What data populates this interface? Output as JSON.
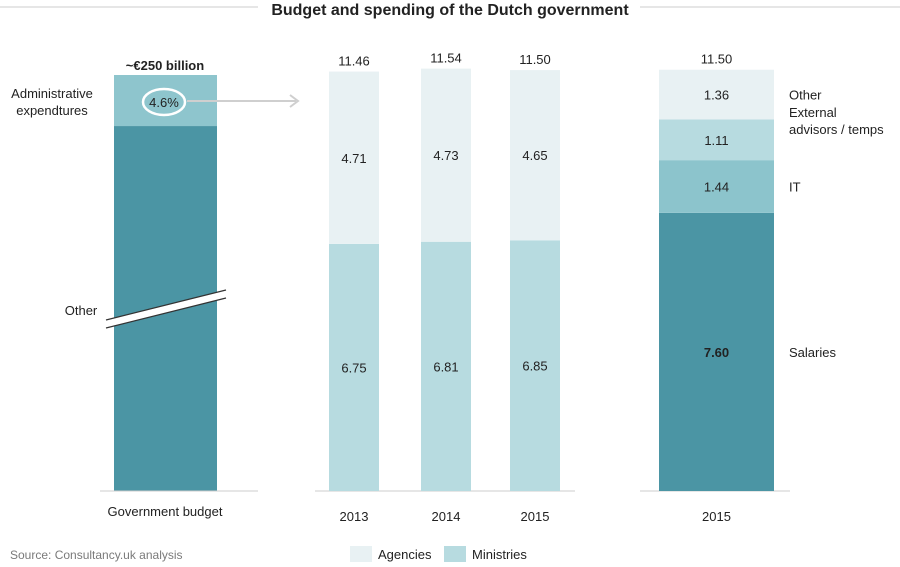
{
  "chart_data": {
    "type": "bar",
    "title": "Budget and spending of the Dutch government",
    "colors": {
      "agencies": "#e8f1f3",
      "ministries": "#b7dbe0",
      "admin": "#8ec5cd",
      "it": "#8cc4cc",
      "teal": "#4b95a4",
      "axis": "#cccccc",
      "arrow": "#cfcfcf"
    },
    "government_budget": {
      "total_label": "~€250 billion",
      "category": "Government budget",
      "segments": [
        {
          "name": "Administrative expendtures",
          "share_percent": 4.6,
          "value_label": "4.6%"
        },
        {
          "name": "Other",
          "share_percent": 95.4
        }
      ]
    },
    "yearly": {
      "categories": [
        "2013",
        "2014",
        "2015"
      ],
      "totals": [
        "11.46",
        "11.54",
        "11.50"
      ],
      "series": [
        {
          "name": "Ministries",
          "values": [
            6.75,
            6.81,
            6.85
          ]
        },
        {
          "name": "Agencies",
          "values": [
            4.71,
            4.73,
            4.65
          ]
        }
      ]
    },
    "breakdown_2015": {
      "category": "2015",
      "total": "11.50",
      "segments": [
        {
          "name": "Salaries",
          "value": 7.6
        },
        {
          "name": "IT",
          "value": 1.44
        },
        {
          "name": "External advisors / temps",
          "value": 1.11
        },
        {
          "name": "Other",
          "value": 1.36
        }
      ]
    },
    "legend": [
      "Agencies",
      "Ministries"
    ],
    "source": "Source: Consultancy.uk analysis"
  }
}
